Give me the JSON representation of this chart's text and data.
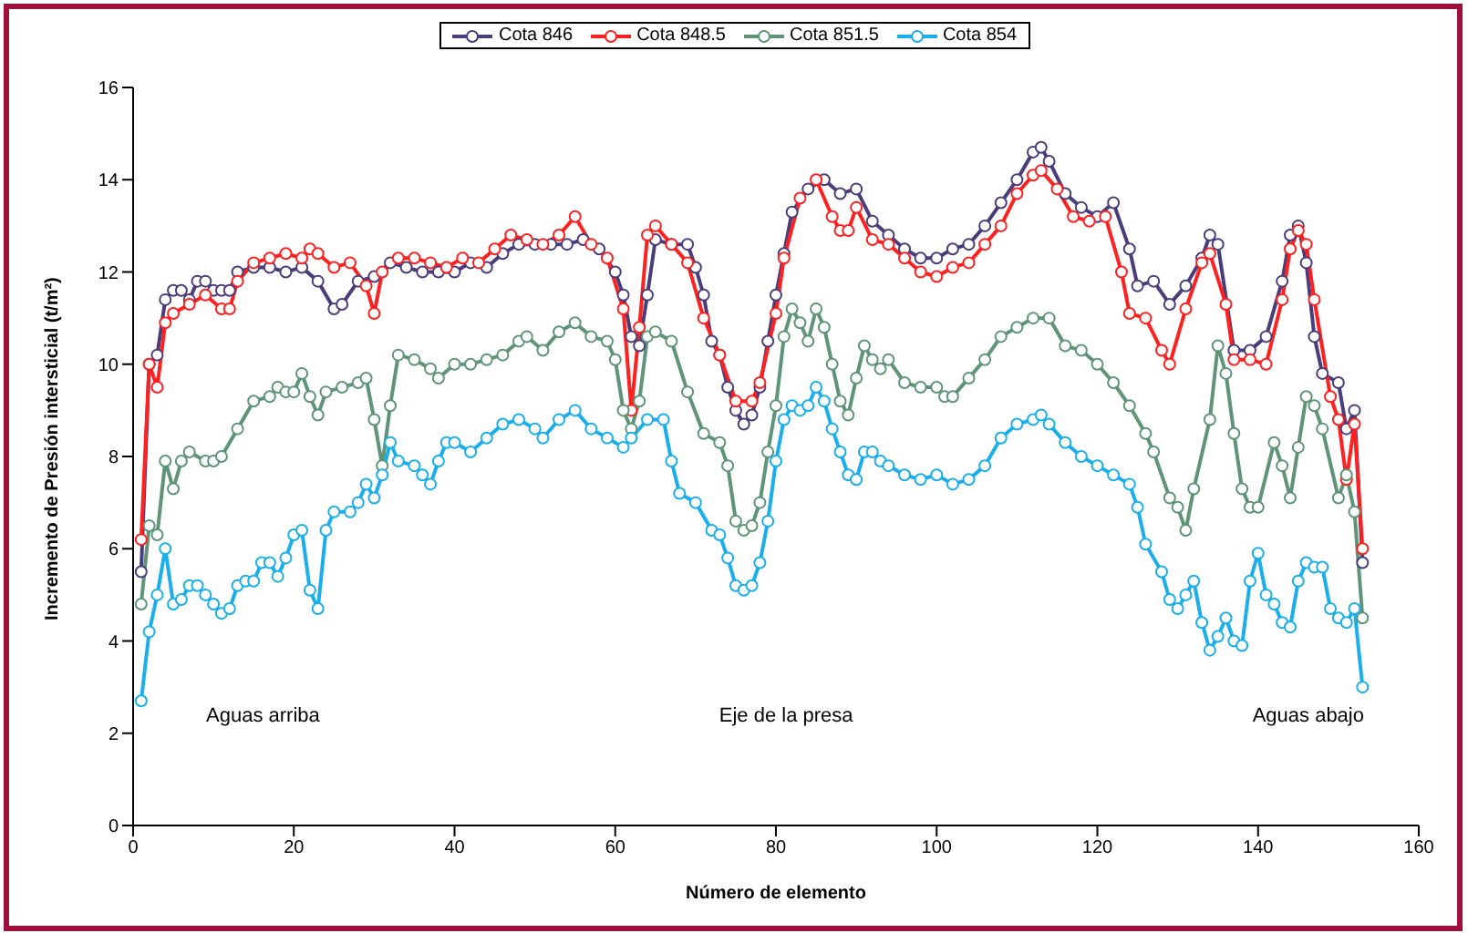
{
  "chart_data": {
    "type": "line",
    "xlabel": "Número de elemento",
    "ylabel": "Incremento de Presión intersticial (t/m²)",
    "xlim": [
      0,
      160
    ],
    "xticks": [
      0,
      20,
      40,
      60,
      80,
      100,
      120,
      140,
      160
    ],
    "ylim": [
      0,
      16
    ],
    "yticks": [
      0,
      2,
      4,
      6,
      8,
      10,
      12,
      14,
      16
    ],
    "grid": false,
    "legend": "top",
    "marker": "circle",
    "line_style": "solid",
    "annotations": [
      "Aguas arriba",
      "Eje de la presa",
      "Aguas abajo"
    ],
    "series": [
      {
        "name": "Cota 846",
        "color": "#4b3d7a",
        "x": [
          1,
          2,
          3,
          4,
          5,
          6,
          7,
          8,
          9,
          10,
          11,
          12,
          13,
          15,
          17,
          19,
          21,
          23,
          25,
          26,
          28,
          30,
          32,
          34,
          36,
          38,
          40,
          42,
          44,
          46,
          48,
          50,
          52,
          54,
          56,
          58,
          60,
          61,
          62,
          63,
          64,
          65,
          67,
          69,
          70,
          71,
          72,
          73,
          74,
          75,
          76,
          77,
          78,
          79,
          80,
          81,
          82,
          84,
          86,
          88,
          90,
          92,
          94,
          96,
          98,
          100,
          102,
          104,
          106,
          108,
          110,
          112,
          113,
          114,
          116,
          118,
          120,
          122,
          124,
          125,
          127,
          129,
          131,
          133,
          134,
          135,
          137,
          139,
          141,
          143,
          144,
          145,
          146,
          147,
          148,
          150,
          151,
          152,
          153
        ],
        "values": [
          5.5,
          10.0,
          10.2,
          11.4,
          11.6,
          11.6,
          11.4,
          11.8,
          11.8,
          11.6,
          11.6,
          11.6,
          12.0,
          12.1,
          12.1,
          12.0,
          12.1,
          11.8,
          11.2,
          11.3,
          11.8,
          11.9,
          12.2,
          12.1,
          12.0,
          12.0,
          12.0,
          12.2,
          12.1,
          12.4,
          12.6,
          12.6,
          12.6,
          12.6,
          12.7,
          12.5,
          12.0,
          11.5,
          10.6,
          10.4,
          11.5,
          12.7,
          12.6,
          12.6,
          12.1,
          11.5,
          10.5,
          10.2,
          9.5,
          9.0,
          8.7,
          8.9,
          9.5,
          10.5,
          11.5,
          12.4,
          13.3,
          13.8,
          14.0,
          13.7,
          13.8,
          13.1,
          12.8,
          12.5,
          12.3,
          12.3,
          12.5,
          12.6,
          13.0,
          13.5,
          14.0,
          14.6,
          14.7,
          14.4,
          13.7,
          13.4,
          13.2,
          13.5,
          12.5,
          11.7,
          11.8,
          11.3,
          11.7,
          12.3,
          12.8,
          12.6,
          10.3,
          10.3,
          10.6,
          11.8,
          12.8,
          13.0,
          12.2,
          10.6,
          9.8,
          9.6,
          8.6,
          9.0,
          5.7
        ]
      },
      {
        "name": "Cota 848.5",
        "color": "#ff2020",
        "x": [
          1,
          2,
          3,
          4,
          5,
          7,
          9,
          11,
          12,
          13,
          15,
          17,
          19,
          21,
          22,
          23,
          25,
          27,
          29,
          30,
          31,
          33,
          35,
          37,
          39,
          41,
          43,
          45,
          47,
          49,
          51,
          53,
          55,
          57,
          59,
          61,
          62,
          63,
          64,
          65,
          67,
          69,
          71,
          73,
          75,
          77,
          78,
          80,
          81,
          83,
          85,
          87,
          88,
          89,
          90,
          92,
          94,
          96,
          98,
          100,
          102,
          104,
          106,
          108,
          110,
          112,
          113,
          115,
          117,
          119,
          121,
          123,
          124,
          126,
          128,
          129,
          131,
          133,
          134,
          136,
          137,
          139,
          141,
          143,
          144,
          145,
          146,
          147,
          149,
          150,
          151,
          152,
          153
        ],
        "values": [
          6.2,
          10.0,
          9.5,
          10.9,
          11.1,
          11.3,
          11.5,
          11.2,
          11.2,
          11.8,
          12.2,
          12.3,
          12.4,
          12.3,
          12.5,
          12.4,
          12.1,
          12.2,
          11.7,
          11.1,
          12.0,
          12.3,
          12.3,
          12.2,
          12.1,
          12.3,
          12.2,
          12.5,
          12.8,
          12.7,
          12.6,
          12.8,
          13.2,
          12.6,
          12.3,
          11.2,
          9.0,
          10.8,
          12.8,
          13.0,
          12.6,
          12.2,
          11.0,
          10.2,
          9.2,
          9.2,
          9.6,
          11.1,
          12.3,
          13.6,
          14.0,
          13.2,
          12.9,
          12.9,
          13.4,
          12.7,
          12.6,
          12.3,
          12.0,
          11.9,
          12.1,
          12.2,
          12.6,
          13.0,
          13.7,
          14.1,
          14.2,
          13.8,
          13.2,
          13.1,
          13.2,
          12.0,
          11.1,
          11.0,
          10.3,
          10.0,
          11.2,
          12.2,
          12.4,
          11.3,
          10.1,
          10.1,
          10.0,
          11.4,
          12.5,
          12.9,
          12.6,
          11.4,
          9.3,
          8.8,
          7.5,
          8.7,
          6.0
        ]
      },
      {
        "name": "Cota 851.5",
        "color": "#5f9478",
        "x": [
          1,
          2,
          3,
          4,
          5,
          6,
          7,
          9,
          10,
          11,
          13,
          15,
          17,
          18,
          19,
          20,
          21,
          22,
          23,
          24,
          26,
          28,
          29,
          30,
          31,
          32,
          33,
          35,
          37,
          38,
          40,
          42,
          44,
          46,
          48,
          49,
          51,
          53,
          55,
          57,
          59,
          60,
          61,
          62,
          63,
          64,
          65,
          67,
          69,
          71,
          73,
          74,
          75,
          76,
          77,
          78,
          79,
          80,
          81,
          82,
          83,
          84,
          85,
          86,
          87,
          88,
          89,
          90,
          91,
          92,
          93,
          94,
          96,
          98,
          100,
          101,
          102,
          104,
          106,
          108,
          110,
          112,
          114,
          116,
          118,
          120,
          122,
          124,
          126,
          127,
          129,
          130,
          131,
          132,
          134,
          135,
          136,
          137,
          138,
          139,
          140,
          142,
          143,
          144,
          145,
          146,
          147,
          148,
          150,
          151,
          152,
          153
        ],
        "values": [
          4.8,
          6.5,
          6.3,
          7.9,
          7.3,
          7.9,
          8.1,
          7.9,
          7.9,
          8.0,
          8.6,
          9.2,
          9.3,
          9.5,
          9.4,
          9.4,
          9.8,
          9.3,
          8.9,
          9.4,
          9.5,
          9.6,
          9.7,
          8.8,
          7.8,
          9.1,
          10.2,
          10.1,
          9.9,
          9.7,
          10.0,
          10.0,
          10.1,
          10.2,
          10.5,
          10.6,
          10.3,
          10.7,
          10.9,
          10.6,
          10.5,
          10.1,
          9.0,
          8.6,
          9.2,
          10.6,
          10.7,
          10.5,
          9.4,
          8.5,
          8.3,
          7.8,
          6.6,
          6.4,
          6.5,
          7.0,
          8.1,
          9.1,
          10.6,
          11.2,
          10.9,
          10.5,
          11.2,
          10.8,
          10.0,
          9.2,
          8.9,
          9.7,
          10.4,
          10.1,
          9.9,
          10.1,
          9.6,
          9.5,
          9.5,
          9.3,
          9.3,
          9.7,
          10.1,
          10.6,
          10.8,
          11.0,
          11.0,
          10.4,
          10.3,
          10.0,
          9.6,
          9.1,
          8.5,
          8.1,
          7.1,
          6.9,
          6.4,
          7.3,
          8.8,
          10.4,
          9.8,
          8.5,
          7.3,
          6.9,
          6.9,
          8.3,
          7.8,
          7.1,
          8.2,
          9.3,
          9.1,
          8.6,
          7.1,
          7.6,
          6.8,
          4.5
        ]
      },
      {
        "name": "Cota 854",
        "color": "#1aaeea",
        "x": [
          1,
          2,
          3,
          4,
          5,
          6,
          7,
          8,
          9,
          10,
          11,
          12,
          13,
          14,
          15,
          16,
          17,
          18,
          19,
          20,
          21,
          22,
          23,
          24,
          25,
          27,
          28,
          29,
          30,
          31,
          32,
          33,
          35,
          36,
          37,
          38,
          39,
          40,
          42,
          44,
          46,
          48,
          50,
          51,
          53,
          55,
          57,
          59,
          61,
          62,
          64,
          66,
          67,
          68,
          70,
          72,
          73,
          74,
          75,
          76,
          77,
          78,
          79,
          80,
          81,
          82,
          83,
          84,
          85,
          86,
          87,
          88,
          89,
          90,
          91,
          92,
          93,
          94,
          96,
          98,
          100,
          102,
          104,
          106,
          108,
          110,
          112,
          113,
          114,
          116,
          118,
          120,
          122,
          124,
          125,
          126,
          128,
          129,
          130,
          131,
          132,
          133,
          134,
          135,
          136,
          137,
          138,
          139,
          140,
          141,
          142,
          143,
          144,
          145,
          146,
          147,
          148,
          149,
          150,
          151,
          152,
          153
        ],
        "values": [
          2.7,
          4.2,
          5.0,
          6.0,
          4.8,
          4.9,
          5.2,
          5.2,
          5.0,
          4.8,
          4.6,
          4.7,
          5.2,
          5.3,
          5.3,
          5.7,
          5.7,
          5.4,
          5.8,
          6.3,
          6.4,
          5.1,
          4.7,
          6.4,
          6.8,
          6.8,
          7.0,
          7.4,
          7.1,
          7.6,
          8.3,
          7.9,
          7.8,
          7.6,
          7.4,
          7.9,
          8.3,
          8.3,
          8.1,
          8.4,
          8.7,
          8.8,
          8.6,
          8.4,
          8.8,
          9.0,
          8.6,
          8.4,
          8.2,
          8.4,
          8.8,
          8.8,
          7.9,
          7.2,
          7.0,
          6.4,
          6.3,
          5.8,
          5.2,
          5.1,
          5.2,
          5.7,
          6.6,
          7.9,
          8.8,
          9.1,
          9.0,
          9.1,
          9.5,
          9.2,
          8.6,
          8.1,
          7.6,
          7.5,
          8.1,
          8.1,
          7.9,
          7.8,
          7.6,
          7.5,
          7.6,
          7.4,
          7.5,
          7.8,
          8.4,
          8.7,
          8.8,
          8.9,
          8.7,
          8.3,
          8.0,
          7.8,
          7.6,
          7.4,
          6.9,
          6.1,
          5.5,
          4.9,
          4.7,
          5.0,
          5.3,
          4.4,
          3.8,
          4.1,
          4.5,
          4.0,
          3.9,
          5.3,
          5.9,
          5.0,
          4.8,
          4.4,
          4.3,
          5.3,
          5.7,
          5.6,
          5.6,
          4.7,
          4.5,
          4.4,
          4.7,
          3.0
        ]
      }
    ]
  }
}
